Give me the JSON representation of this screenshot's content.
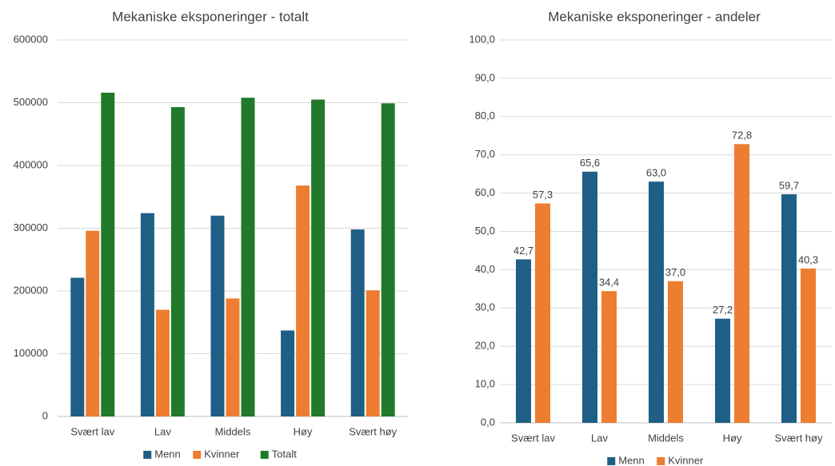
{
  "chart_data": [
    {
      "type": "bar",
      "title": "Mekaniske eksponeringer - totalt",
      "categories": [
        "Svært lav",
        "Lav",
        "Middels",
        "Høy",
        "Svært høy"
      ],
      "series": [
        {
          "name": "Menn",
          "color": "#1f5f85",
          "values": [
            221000,
            324000,
            320000,
            137000,
            298000
          ]
        },
        {
          "name": "Kvinner",
          "color": "#ed7d31",
          "values": [
            296000,
            170000,
            188000,
            368000,
            201000
          ]
        },
        {
          "name": "Totalt",
          "color": "#217a2a",
          "values": [
            516000,
            493000,
            508000,
            505000,
            499000
          ]
        }
      ],
      "ylim": [
        0,
        600000
      ],
      "yticks": [
        0,
        100000,
        200000,
        300000,
        400000,
        500000,
        600000
      ],
      "grid": true,
      "legend": "bottom"
    },
    {
      "type": "bar",
      "title": "Mekaniske eksponeringer - andeler",
      "categories": [
        "Svært lav",
        "Lav",
        "Middels",
        "Høy",
        "Svært høy"
      ],
      "series": [
        {
          "name": "Menn",
          "color": "#1f5f85",
          "values": [
            42.7,
            65.6,
            63.0,
            27.2,
            59.7
          ],
          "value_labels": [
            "42,7",
            "65,6",
            "63,0",
            "27,2",
            "59,7"
          ]
        },
        {
          "name": "Kvinner",
          "color": "#ed7d31",
          "values": [
            57.3,
            34.4,
            37.0,
            72.8,
            40.3
          ],
          "value_labels": [
            "57,3",
            "34,4",
            "37,0",
            "72,8",
            "40,3"
          ]
        }
      ],
      "ylim": [
        0,
        100
      ],
      "yticks": [
        {
          "value": 0,
          "label": "0,0"
        },
        {
          "value": 10,
          "label": "10,0"
        },
        {
          "value": 20,
          "label": "20,0"
        },
        {
          "value": 30,
          "label": "30,0"
        },
        {
          "value": 40,
          "label": "40,0"
        },
        {
          "value": 50,
          "label": "50,0"
        },
        {
          "value": 60,
          "label": "60,0"
        },
        {
          "value": 70,
          "label": "70,0"
        },
        {
          "value": 80,
          "label": "80,0"
        },
        {
          "value": 90,
          "label": "90,0"
        },
        {
          "value": 100,
          "label": "100,0"
        }
      ],
      "grid": true,
      "legend": "bottom"
    }
  ]
}
